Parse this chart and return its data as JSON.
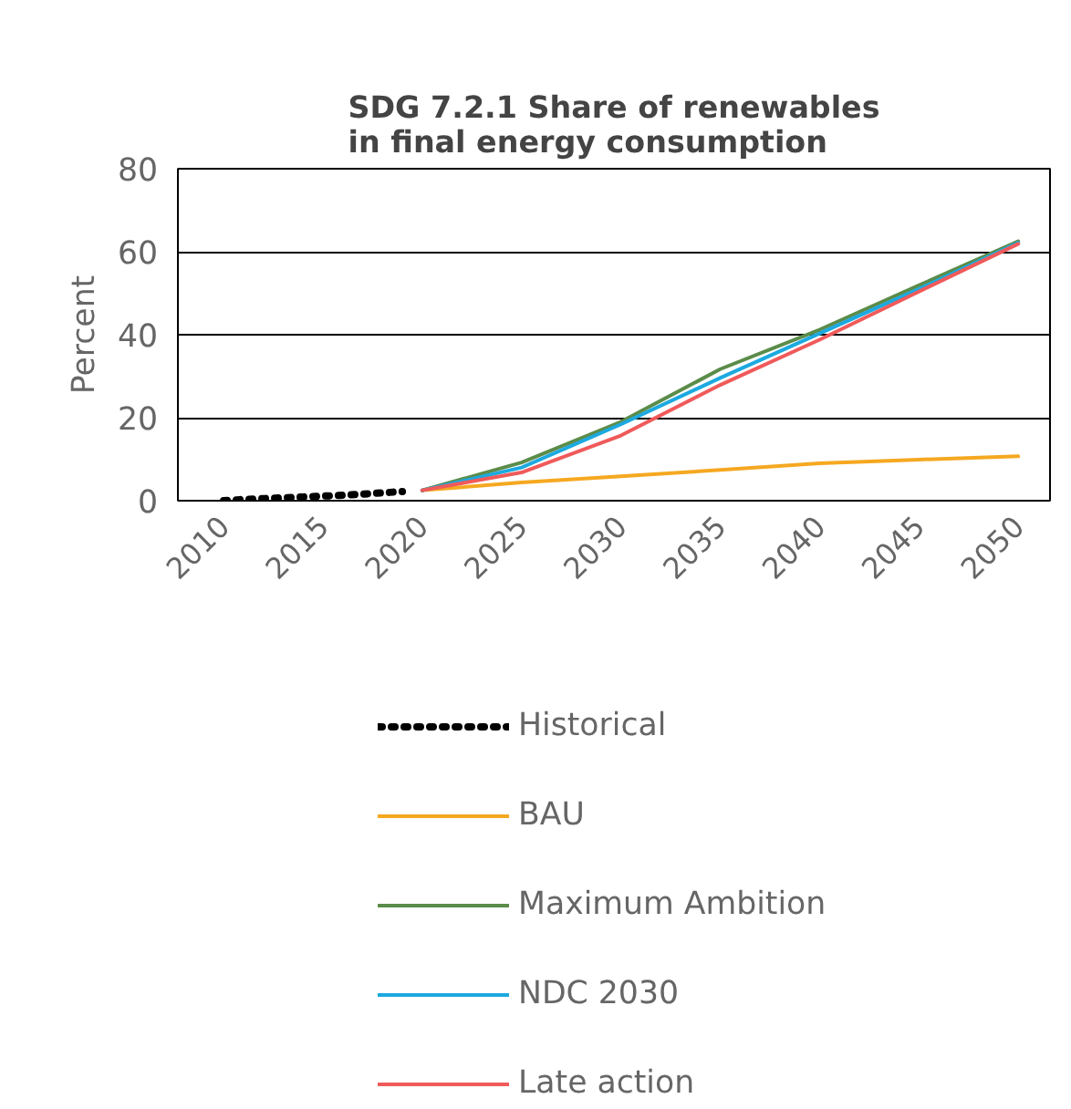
{
  "chart_data": {
    "type": "line",
    "title": "SDG 7.2.1 Share of renewables\nin final energy consumption",
    "ylabel": "Percent",
    "xlim": [
      2007.7,
      2051.6
    ],
    "xticks": [
      2010,
      2015,
      2020,
      2025,
      2030,
      2035,
      2040,
      2045,
      2050
    ],
    "ylim": [
      0,
      80
    ],
    "yticks": [
      0,
      20,
      40,
      60,
      80
    ],
    "grid": "y",
    "legend": "bottom",
    "series": [
      {
        "name": "Historical",
        "color": "#000000",
        "line_style": "dotted",
        "x": [
          2010,
          2011,
          2012,
          2013,
          2014,
          2015,
          2016,
          2017,
          2018,
          2019
        ],
        "values": [
          0.0,
          0.3,
          0.5,
          0.7,
          0.9,
          1.1,
          1.3,
          1.6,
          1.9,
          2.2
        ]
      },
      {
        "name": "BAU",
        "color": "#f5a820",
        "x": [
          2020,
          2025,
          2030,
          2035,
          2040,
          2045,
          2050
        ],
        "values": [
          2.5,
          4.4,
          5.9,
          7.4,
          9.0,
          9.9,
          10.7
        ]
      },
      {
        "name": "Maximum Ambition",
        "color": "#5b8c4a",
        "x": [
          2020,
          2025,
          2030,
          2035,
          2040,
          2045,
          2050
        ],
        "values": [
          2.5,
          9.2,
          19.0,
          31.7,
          41.2,
          51.9,
          62.5
        ]
      },
      {
        "name": "NDC 2030",
        "color": "#1ca9e0",
        "x": [
          2020,
          2025,
          2030,
          2035,
          2040,
          2045,
          2050
        ],
        "values": [
          2.5,
          8.0,
          18.4,
          29.6,
          40.3,
          51.0,
          62.2
        ]
      },
      {
        "name": "Late action",
        "color": "#f05a5a",
        "x": [
          2020,
          2025,
          2030,
          2035,
          2040,
          2045,
          2050
        ],
        "values": [
          2.5,
          6.8,
          15.7,
          27.9,
          38.8,
          50.4,
          61.9
        ]
      }
    ]
  }
}
